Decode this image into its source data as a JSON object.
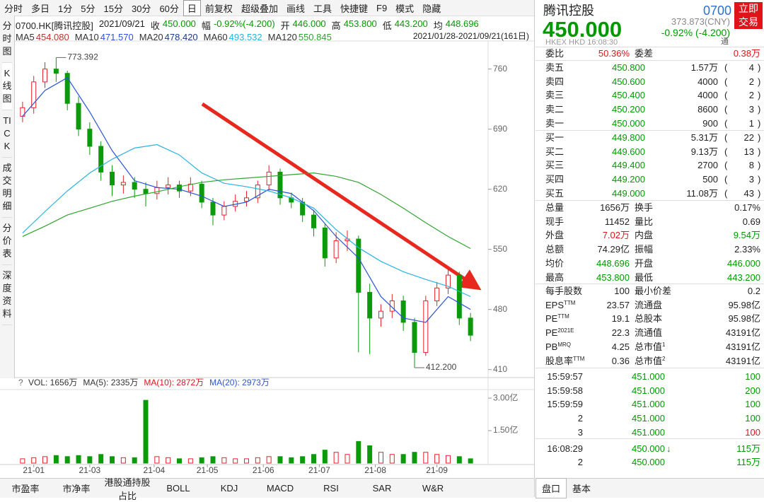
{
  "toolbar": {
    "items": [
      "分时",
      "多日",
      "1分",
      "5分",
      "15分",
      "30分",
      "60分",
      "日",
      "前复权",
      "超级叠加",
      "画线",
      "工具",
      "快捷键",
      "F9",
      "模式",
      "隐藏"
    ],
    "active": 7
  },
  "sidebar": {
    "items": [
      "分时图",
      "K线图",
      "TICK",
      "成交明细",
      "分价表",
      "深度资料"
    ],
    "active": 1
  },
  "info": [
    "0700.HK[腾讯控股]",
    "2021/09/21",
    "收",
    "450.000",
    "幅",
    "-0.92%(-4.200)",
    "开",
    "446.000",
    "高",
    "453.800",
    "低",
    "443.200",
    "均",
    "448.696"
  ],
  "range": "2021/01/28-2021/09/21(161日)",
  "collapse": "»",
  "kline": {
    "up_color": "#e8212b",
    "down_color": "#0a9a0a",
    "xlim": [
      -3,
      163
    ],
    "xticks": [
      {
        "value": 4,
        "label": "21-01"
      },
      {
        "value": 24,
        "label": "21-03"
      },
      {
        "value": 47,
        "label": "21-04"
      },
      {
        "value": 66,
        "label": "21-05"
      },
      {
        "value": 86,
        "label": "21-06"
      },
      {
        "value": 106,
        "label": "21-07"
      },
      {
        "value": 126,
        "label": "21-08"
      },
      {
        "value": 148,
        "label": "21-09"
      }
    ],
    "ylim": [
      404,
      791
    ],
    "yticks": [
      760,
      690,
      620,
      550,
      480,
      410
    ],
    "x": [
      0,
      4,
      8,
      12,
      16,
      20,
      24,
      28,
      32,
      36,
      40,
      44,
      48,
      52,
      56,
      60,
      64,
      68,
      72,
      76,
      80,
      84,
      88,
      92,
      96,
      100,
      104,
      108,
      112,
      116,
      120,
      124,
      128,
      132,
      136,
      140,
      144,
      148,
      152,
      156,
      160
    ],
    "open": [
      705,
      715,
      745,
      760,
      755,
      720,
      690,
      670,
      640,
      625,
      628,
      620,
      615,
      622,
      625,
      618,
      626,
      605,
      590,
      600,
      606,
      610,
      625,
      640,
      610,
      605,
      590,
      575,
      540,
      560,
      562,
      500,
      470,
      478,
      490,
      465,
      430,
      490,
      505,
      520,
      470
    ],
    "high": [
      722,
      752,
      768,
      773.392,
      758,
      728,
      698,
      676,
      648,
      636,
      634,
      628,
      630,
      634,
      630,
      634,
      630,
      610,
      606,
      614,
      618,
      630,
      648,
      644,
      616,
      610,
      596,
      580,
      570,
      572,
      566,
      510,
      486,
      498,
      496,
      470,
      496,
      512,
      528,
      524,
      476
    ],
    "low": [
      698,
      708,
      738,
      745,
      712,
      682,
      660,
      630,
      612,
      615,
      610,
      600,
      608,
      614,
      610,
      612,
      598,
      578,
      584,
      594,
      600,
      604,
      618,
      602,
      598,
      582,
      565,
      530,
      534,
      548,
      430,
      428,
      460,
      470,
      455,
      412.2,
      426,
      484,
      498,
      462,
      443.2
    ],
    "close": [
      715,
      745,
      760,
      755,
      720,
      690,
      670,
      640,
      625,
      628,
      620,
      615,
      622,
      625,
      618,
      626,
      605,
      590,
      600,
      606,
      610,
      625,
      640,
      610,
      605,
      590,
      575,
      540,
      560,
      562,
      500,
      470,
      478,
      490,
      465,
      430,
      490,
      505,
      520,
      470,
      450
    ],
    "high_label": "773.392",
    "low_label": "412.200",
    "ma_x": [
      0,
      8,
      16,
      24,
      32,
      40,
      48,
      56,
      64,
      72,
      80,
      88,
      96,
      104,
      112,
      120,
      128,
      136,
      144,
      152,
      160
    ],
    "ma": [
      {
        "name": "MA5",
        "value": "454.080",
        "color": "#c0332c"
      },
      {
        "name": "MA10",
        "value": "471.570",
        "color": "#2d54d4",
        "line": [
          705,
          735,
          750,
          710,
          665,
          630,
          622,
          620,
          612,
          600,
          605,
          620,
          615,
          595,
          565,
          540,
          495,
          470,
          465,
          495,
          480
        ]
      },
      {
        "name": "MA20",
        "value": "478.420",
        "color": "#1b3a8c"
      },
      {
        "name": "MA60",
        "value": "493.532",
        "color": "#28b4e0",
        "line": [
          569,
          594,
          618,
          639,
          655,
          668,
          672,
          660,
          639,
          627,
          623,
          618,
          610,
          598,
          573,
          552,
          536,
          524,
          515,
          507,
          495
        ]
      },
      {
        "name": "MA120",
        "value": "550.845",
        "color": "#2fa52f",
        "line": [
          565,
          577,
          590,
          598,
          606,
          612,
          617,
          623,
          628,
          631,
          633,
          635,
          637,
          639,
          635,
          628,
          614,
          598,
          581,
          565,
          551
        ]
      }
    ],
    "volume": [
      0.2,
      0.25,
      0.3,
      0.35,
      0.3,
      0.35,
      0.3,
      0.4,
      0.3,
      0.25,
      0.25,
      2.9,
      0.3,
      0.25,
      0.2,
      0.2,
      0.25,
      0.3,
      0.25,
      0.2,
      0.2,
      0.25,
      0.3,
      0.3,
      0.25,
      0.3,
      0.4,
      0.6,
      0.5,
      0.4,
      1.0,
      0.8,
      0.5,
      0.4,
      0.4,
      0.5,
      0.5,
      0.4,
      0.35,
      0.3,
      0.2
    ],
    "vylim": [
      0,
      3.33
    ],
    "vyticks": [
      {
        "value": 3,
        "label": "3.00亿"
      },
      {
        "value": 1.5,
        "label": "1.50亿"
      }
    ],
    "vol_help": "?",
    "vol_legend": [
      {
        "text": "VOL: 1656万",
        "color": "#333"
      },
      {
        "text": "MA(5): 2335万",
        "color": "#333"
      },
      {
        "text": "MA(10): 2872万",
        "color": "#e0131b"
      },
      {
        "text": "MA(20): 2973万",
        "color": "#2d54d4"
      }
    ]
  },
  "indicators": [
    "市盈率",
    "市净率",
    "港股通持股占比",
    "BOLL",
    "KDJ",
    "MACD",
    "RSI",
    "SAR",
    "W&R"
  ],
  "quote": {
    "name": "腾讯控股",
    "code": "0700",
    "trade_btn": "立即交易",
    "price": "450.000",
    "cny": "373.873(CNY)",
    "change": "-0.92% (-4.200)",
    "market": "HKEX HKD 16:08:30",
    "tong": "通",
    "paren": [
      "(",
      ")"
    ],
    "ratio": {
      "l1": "委比",
      "v1": "50.36%",
      "c1": "#e0131b",
      "l2": "委差",
      "v2": "0.38万",
      "c2": "#e0131b"
    },
    "asks": [
      {
        "label": "卖五",
        "price": "450.800",
        "vol": "1.57万",
        "count": "4"
      },
      {
        "label": "卖四",
        "price": "450.600",
        "vol": "4000",
        "count": "2"
      },
      {
        "label": "卖三",
        "price": "450.400",
        "vol": "4000",
        "count": "2"
      },
      {
        "label": "卖二",
        "price": "450.200",
        "vol": "8600",
        "count": "3"
      },
      {
        "label": "卖一",
        "price": "450.000",
        "vol": "900",
        "count": "1"
      }
    ],
    "bids": [
      {
        "label": "买一",
        "price": "449.800",
        "vol": "5.31万",
        "count": "22"
      },
      {
        "label": "买二",
        "price": "449.600",
        "vol": "9.13万",
        "count": "13"
      },
      {
        "label": "买三",
        "price": "449.400",
        "vol": "2700",
        "count": "8"
      },
      {
        "label": "买四",
        "price": "449.200",
        "vol": "500",
        "count": "3"
      },
      {
        "label": "买五",
        "price": "449.000",
        "vol": "11.08万",
        "count": "43"
      }
    ],
    "price_color": "#009a00",
    "stats": [
      {
        "l1": "总量",
        "v1": "1656万",
        "c1": "#222",
        "l2": "换手",
        "v2": "0.17%",
        "c2": "#222"
      },
      {
        "l1": "现手",
        "v1": "11452",
        "c1": "#222",
        "l2": "量比",
        "v2": "0.69",
        "c2": "#222"
      },
      {
        "l1": "外盘",
        "v1": "7.02万",
        "c1": "#e0131b",
        "l2": "内盘",
        "v2": "9.54万",
        "c2": "#009a00"
      },
      {
        "l1": "总额",
        "v1": "74.29亿",
        "c1": "#222",
        "l2": "振幅",
        "v2": "2.33%",
        "c2": "#222"
      },
      {
        "l1": "均价",
        "v1": "448.696",
        "c1": "#009a00",
        "l2": "开盘",
        "v2": "446.000",
        "c2": "#009a00"
      },
      {
        "l1": "最高",
        "v1": "453.800",
        "c1": "#009a00",
        "l2": "最低",
        "v2": "443.200",
        "c2": "#009a00"
      }
    ],
    "fundamentals": [
      {
        "l1": "每手股数",
        "s1": "",
        "v1": "100",
        "l2": "最小价差",
        "s2": "",
        "v2": "0.2"
      },
      {
        "l1": "EPS",
        "s1": "TTM",
        "v1": "23.57",
        "l2": "流通盘",
        "s2": "",
        "v2": "95.98亿"
      },
      {
        "l1": "PE",
        "s1": "TTM",
        "v1": "19.1",
        "l2": "总股本",
        "s2": "",
        "v2": "95.98亿"
      },
      {
        "l1": "PE",
        "s1": "2021E",
        "v1": "22.3",
        "l2": "流通值",
        "s2": "",
        "v2": "43191亿"
      },
      {
        "l1": "PB",
        "s1": "MRQ",
        "v1": "4.25",
        "l2": "总市值",
        "s2": "1",
        "v2": "43191亿"
      },
      {
        "l1": "股息率",
        "s1": "TTM",
        "v1": "0.36",
        "l2": "总市值",
        "s2": "2",
        "v2": "43191亿"
      }
    ],
    "trades": [
      {
        "time": "15:59:57",
        "price": "451.000",
        "vol": "100",
        "vol_color": "#009a00"
      },
      {
        "time": "15:59:58",
        "price": "451.000",
        "vol": "200",
        "vol_color": "#009a00"
      },
      {
        "time": "15:59:59",
        "price": "451.000",
        "vol": "100",
        "vol_color": "#009a00"
      },
      {
        "time": "2",
        "price": "451.000",
        "vol": "100",
        "vol_color": "#009a00"
      },
      {
        "time": "3",
        "price": "451.000",
        "vol": "100",
        "vol_color": "#e0131b"
      },
      {
        "time": "16:08:29",
        "price": "450.000",
        "arrow": "↓",
        "vol": "115万",
        "vol_color": "#009a00"
      },
      {
        "time": "2",
        "price": "450.000",
        "vol": "115万",
        "vol_color": "#009a00"
      }
    ],
    "tabs": [
      "盘口",
      "基本"
    ]
  }
}
